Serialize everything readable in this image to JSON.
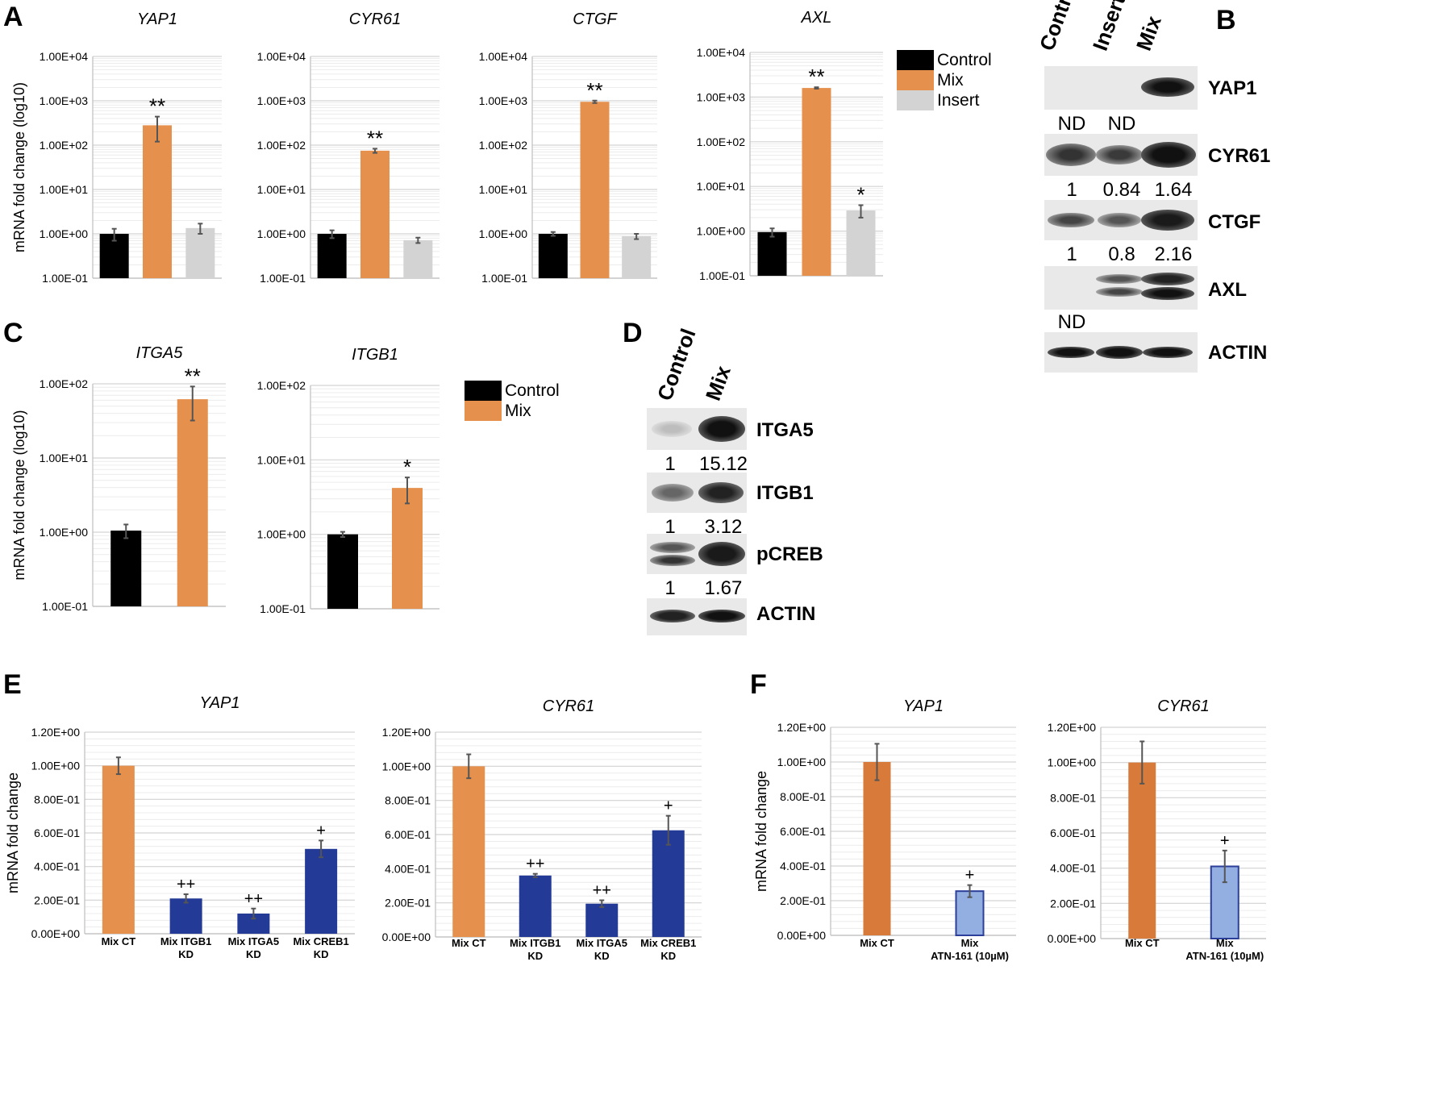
{
  "panel_labels": {
    "A": "A",
    "B": "B",
    "C": "C",
    "D": "D",
    "E": "E",
    "F": "F"
  },
  "colors": {
    "control": "#000000",
    "mix": "#e5904c",
    "insert": "#d3d3d3",
    "kd": "#233a96",
    "mix_dark": "#d77a3a",
    "atn": "#93aee0"
  },
  "legend_A": {
    "items": [
      "Control",
      "Mix",
      "Insert"
    ]
  },
  "legend_C": {
    "items": [
      "Control",
      "Mix"
    ]
  },
  "chart_data": [
    {
      "id": "A1",
      "type": "bar",
      "title": "YAP1",
      "ylabel": "mRNA fold change (log10)",
      "yscale": "log",
      "ylim": [
        0.1,
        10000
      ],
      "ticks": [
        "1.00E-01",
        "1.00E+00",
        "1.00E+01",
        "1.00E+02",
        "1.00E+03",
        "1.00E+04"
      ],
      "categories": [
        "Control",
        "Mix",
        "Insert"
      ],
      "values": [
        1.0,
        280,
        1.35
      ],
      "errors": [
        0.3,
        160,
        0.35
      ],
      "annotations": [
        "",
        "**",
        ""
      ]
    },
    {
      "id": "A2",
      "type": "bar",
      "title": "CYR61",
      "ylabel": "",
      "yscale": "log",
      "ylim": [
        0.1,
        10000
      ],
      "ticks": [
        "1.00E-01",
        "1.00E+00",
        "1.00E+01",
        "1.00E+02",
        "1.00E+03",
        "1.00E+04"
      ],
      "categories": [
        "Control",
        "Mix",
        "Insert"
      ],
      "values": [
        1.0,
        75,
        0.72
      ],
      "errors": [
        0.2,
        8,
        0.1
      ],
      "annotations": [
        "",
        "**",
        ""
      ]
    },
    {
      "id": "A3",
      "type": "bar",
      "title": "CTGF",
      "ylabel": "",
      "yscale": "log",
      "ylim": [
        0.1,
        10000
      ],
      "ticks": [
        "1.00E-01",
        "1.00E+00",
        "1.00E+01",
        "1.00E+02",
        "1.00E+03",
        "1.00E+04"
      ],
      "categories": [
        "Control",
        "Mix",
        "Insert"
      ],
      "values": [
        1.0,
        950,
        0.88
      ],
      "errors": [
        0.1,
        60,
        0.12
      ],
      "annotations": [
        "",
        "**",
        ""
      ]
    },
    {
      "id": "A4",
      "type": "bar",
      "title": "AXL",
      "ylabel": "",
      "yscale": "log",
      "ylim": [
        0.1,
        10000
      ],
      "ticks": [
        "1.00E-01",
        "1.00E+00",
        "1.00E+01",
        "1.00E+02",
        "1.00E+03",
        "1.00E+04"
      ],
      "categories": [
        "Control",
        "Mix",
        "Insert"
      ],
      "values": [
        0.95,
        1600,
        2.9
      ],
      "errors": [
        0.2,
        60,
        0.9
      ],
      "annotations": [
        "",
        "**",
        "*"
      ]
    },
    {
      "id": "C1",
      "type": "bar",
      "title": "ITGA5",
      "ylabel": "mRNA fold change (log10)",
      "yscale": "log",
      "ylim": [
        0.1,
        100
      ],
      "ticks": [
        "1.00E-01",
        "1.00E+00",
        "1.00E+01",
        "1.00E+02"
      ],
      "categories": [
        "Control",
        "Mix"
      ],
      "values": [
        1.05,
        62
      ],
      "errors": [
        0.22,
        30
      ],
      "annotations": [
        "",
        "**"
      ]
    },
    {
      "id": "C2",
      "type": "bar",
      "title": "ITGB1",
      "ylabel": "",
      "yscale": "log",
      "ylim": [
        0.1,
        100
      ],
      "ticks": [
        "1.00E-01",
        "1.00E+00",
        "1.00E+01",
        "1.00E+02"
      ],
      "categories": [
        "Control",
        "Mix"
      ],
      "values": [
        1.0,
        4.2
      ],
      "errors": [
        0.08,
        1.6
      ],
      "annotations": [
        "",
        "*"
      ]
    },
    {
      "id": "E1",
      "type": "bar",
      "title": "YAP1",
      "ylabel": "mRNA fold change",
      "yscale": "linear",
      "ylim": [
        0,
        1.2
      ],
      "ticks": [
        "0.00E+00",
        "2.00E-01",
        "4.00E-01",
        "6.00E-01",
        "8.00E-01",
        "1.00E+00",
        "1.20E+00"
      ],
      "categories": [
        [
          "Mix CT"
        ],
        [
          "Mix ITGB1",
          "KD"
        ],
        [
          "Mix ITGA5",
          "KD"
        ],
        [
          "Mix CREB1",
          "KD"
        ]
      ],
      "values": [
        1.0,
        0.21,
        0.12,
        0.505
      ],
      "errors": [
        0.05,
        0.025,
        0.03,
        0.05
      ],
      "annotations": [
        "",
        "++",
        "++",
        "+"
      ]
    },
    {
      "id": "E2",
      "type": "bar",
      "title": "CYR61",
      "ylabel": "",
      "yscale": "linear",
      "ylim": [
        0,
        1.2
      ],
      "ticks": [
        "0.00E+00",
        "2.00E-01",
        "4.00E-01",
        "6.00E-01",
        "8.00E-01",
        "1.00E+00",
        "1.20E+00"
      ],
      "categories": [
        [
          "Mix CT"
        ],
        [
          "Mix ITGB1",
          "KD"
        ],
        [
          "Mix ITGA5",
          "KD"
        ],
        [
          "Mix CREB1",
          "KD"
        ]
      ],
      "values": [
        1.0,
        0.36,
        0.195,
        0.625
      ],
      "errors": [
        0.07,
        0.01,
        0.02,
        0.085
      ],
      "annotations": [
        "",
        "++",
        "++",
        "+"
      ]
    },
    {
      "id": "F1",
      "type": "bar",
      "title": "YAP1",
      "ylabel": "mRNA fold change",
      "yscale": "linear",
      "ylim": [
        0,
        1.2
      ],
      "ticks": [
        "0.00E+00",
        "2.00E-01",
        "4.00E-01",
        "6.00E-01",
        "8.00E-01",
        "1.00E+00",
        "1.20E+00"
      ],
      "categories": [
        [
          "Mix CT"
        ],
        [
          "Mix",
          "ATN-161 (10µM)"
        ]
      ],
      "values": [
        1.0,
        0.255
      ],
      "errors": [
        0.105,
        0.035
      ],
      "annotations": [
        "",
        "+"
      ]
    },
    {
      "id": "F2",
      "type": "bar",
      "title": "CYR61",
      "ylabel": "",
      "yscale": "linear",
      "ylim": [
        0,
        1.2
      ],
      "ticks": [
        "0.00E+00",
        "2.00E-01",
        "4.00E-01",
        "6.00E-01",
        "8.00E-01",
        "1.00E+00",
        "1.20E+00"
      ],
      "categories": [
        [
          "Mix CT"
        ],
        [
          "Mix",
          "ATN-161 (10µM)"
        ]
      ],
      "values": [
        1.0,
        0.41
      ],
      "errors": [
        0.12,
        0.09
      ],
      "annotations": [
        "",
        "+"
      ]
    }
  ],
  "blot_B": {
    "lanes": [
      "Control",
      "Insert",
      "Mix"
    ],
    "rows": [
      {
        "label": "YAP1",
        "quant": [
          "ND",
          "ND",
          ""
        ]
      },
      {
        "label": "CYR61",
        "quant": [
          "1",
          "0.84",
          "1.64"
        ]
      },
      {
        "label": "CTGF",
        "quant": [
          "1",
          "0.8",
          "2.16"
        ]
      },
      {
        "label": "AXL",
        "quant": [
          "ND",
          "",
          ""
        ]
      },
      {
        "label": "ACTIN",
        "quant": [
          "",
          "",
          ""
        ]
      }
    ]
  },
  "blot_D": {
    "lanes": [
      "Control",
      "Mix"
    ],
    "rows": [
      {
        "label": "ITGA5",
        "quant": [
          "1",
          "15.12"
        ]
      },
      {
        "label": "ITGB1",
        "quant": [
          "1",
          "3.12"
        ]
      },
      {
        "label": "pCREB",
        "quant": [
          "1",
          "1.67"
        ]
      },
      {
        "label": "ACTIN",
        "quant": [
          "",
          ""
        ]
      }
    ]
  }
}
